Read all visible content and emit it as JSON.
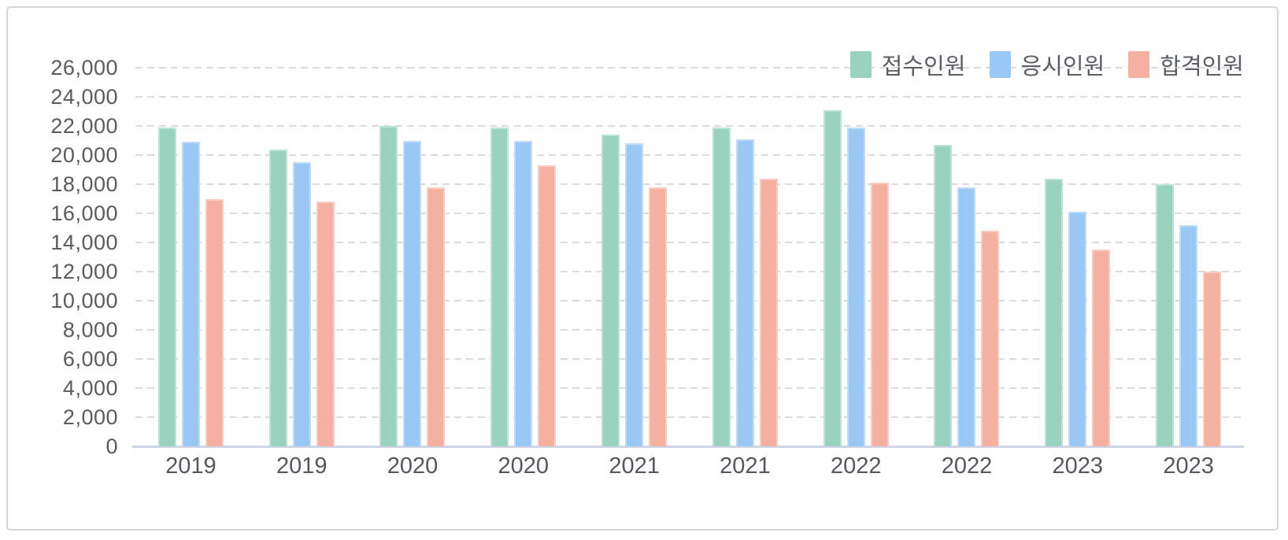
{
  "chart_data": {
    "type": "bar",
    "title": "",
    "xlabel": "",
    "ylabel": "",
    "categories": [
      "2019",
      "2019",
      "2020",
      "2020",
      "2021",
      "2021",
      "2022",
      "2022",
      "2023",
      "2023"
    ],
    "series": [
      {
        "name": "접수인원",
        "color": "#99d3bf",
        "edge_color": "#bce3d6",
        "values": [
          21900,
          20400,
          22000,
          21900,
          21400,
          21900,
          23100,
          20700,
          18400,
          18000
        ]
      },
      {
        "name": "응시인원",
        "color": "#9ac8f5",
        "edge_color": "#c0dcf8",
        "values": [
          20900,
          19500,
          21000,
          21000,
          20800,
          21100,
          21900,
          17800,
          16100,
          15200
        ]
      },
      {
        "name": "합격인원",
        "color": "#f4b0a1",
        "edge_color": "#f8cdc2",
        "values": [
          17000,
          16800,
          17800,
          19300,
          17800,
          18400,
          18100,
          14800,
          13500,
          12000
        ]
      }
    ],
    "ylim": [
      0,
      26000
    ],
    "ytick_step": 2000,
    "yticks": [
      "0",
      "2,000",
      "4,000",
      "6,000",
      "8,000",
      "10,000",
      "12,000",
      "14,000",
      "16,000",
      "18,000",
      "20,000",
      "22,000",
      "24,000",
      "26,000"
    ],
    "grid": "horizontal-dashed",
    "gridline_color": "#dcdcdc",
    "baseline_color": "#ccd5ea",
    "legend_position": "top-right",
    "text_color": "#595b5e"
  }
}
